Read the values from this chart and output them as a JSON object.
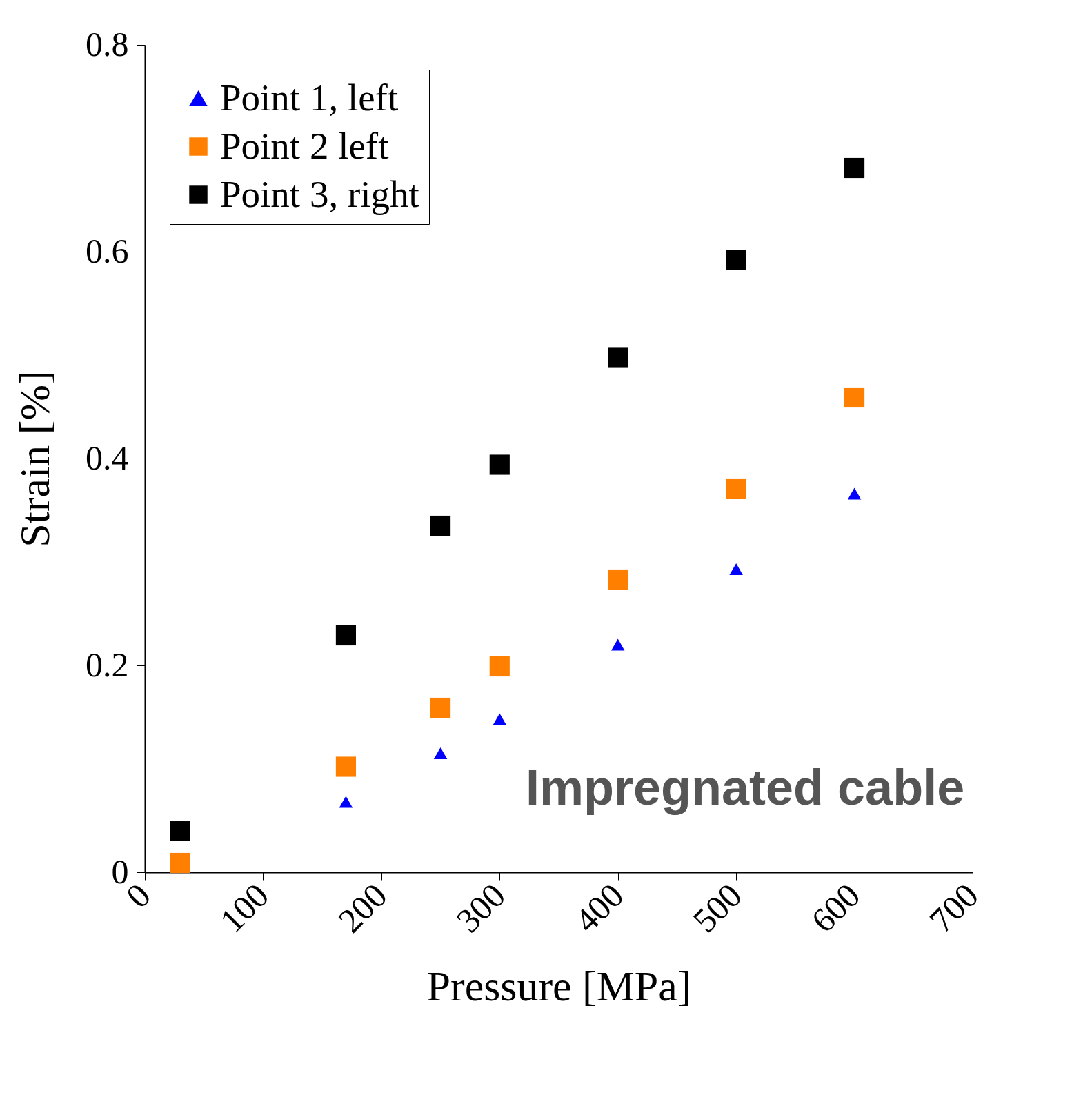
{
  "chart_data": {
    "type": "scatter",
    "xlabel": "Pressure [MPa]",
    "ylabel": "Strain [%]",
    "xlim": [
      0,
      700
    ],
    "xticks": [
      0,
      100,
      200,
      300,
      400,
      500,
      600,
      700
    ],
    "ylim": [
      0,
      0.8
    ],
    "yticks": [
      0,
      0.2,
      0.4,
      0.6,
      0.8
    ],
    "grid": false,
    "legend": "top left",
    "annotations": [
      "Impregnated cable"
    ],
    "series": [
      {
        "name": "Point 1, left",
        "color": "#0000ff",
        "marker": "triangle",
        "x": [
          170,
          250,
          300,
          400,
          500,
          600
        ],
        "values": [
          0.068,
          0.115,
          0.148,
          0.22,
          0.293,
          0.366
        ]
      },
      {
        "name": "Point 2 left",
        "color": "#ff7f00",
        "marker": "square",
        "x": [
          30,
          170,
          250,
          300,
          400,
          500,
          600
        ],
        "values": [
          0.009,
          0.102,
          0.159,
          0.199,
          0.283,
          0.371,
          0.459
        ]
      },
      {
        "name": "Point 3, right",
        "color": "#000000",
        "marker": "square",
        "x": [
          30,
          170,
          250,
          300,
          400,
          500,
          600
        ],
        "values": [
          0.04,
          0.229,
          0.335,
          0.394,
          0.498,
          0.592,
          0.681
        ]
      }
    ]
  }
}
